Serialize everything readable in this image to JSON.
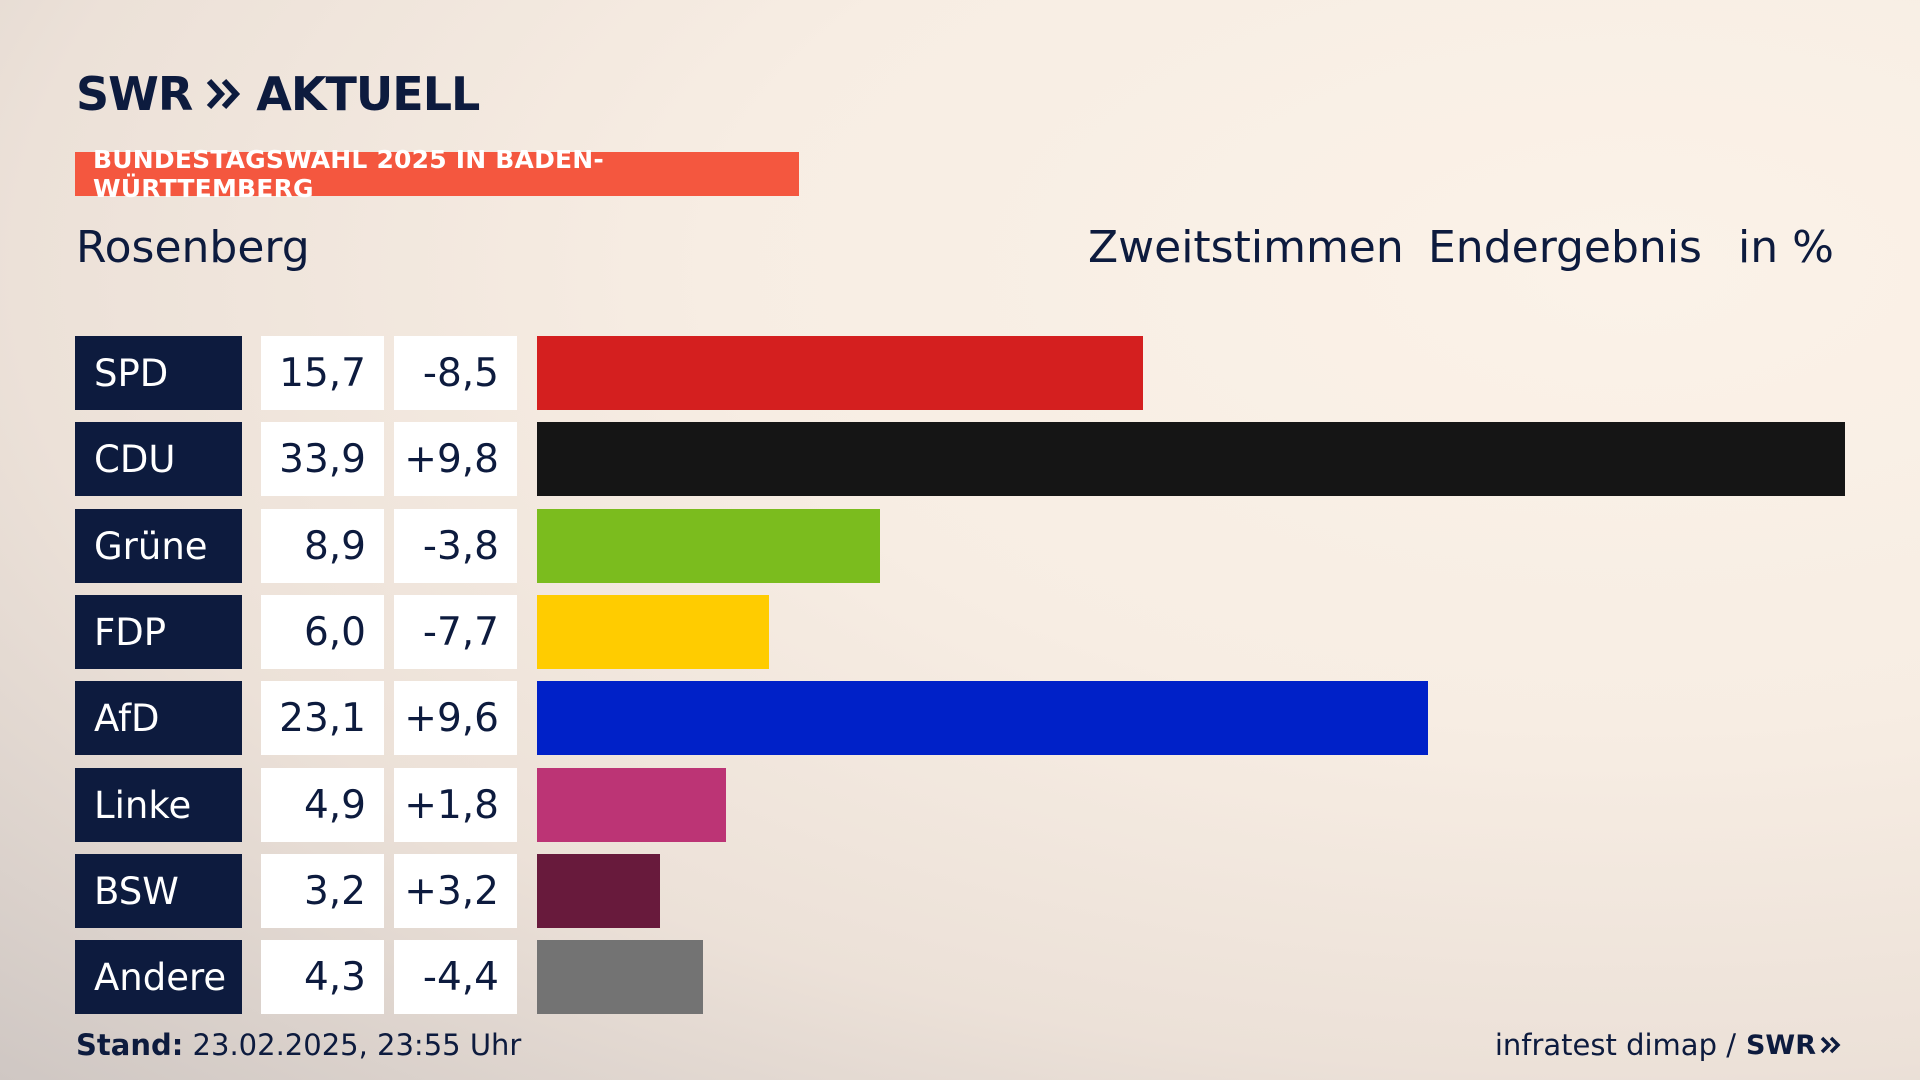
{
  "brand": {
    "logo_left": "SWR",
    "logo_right": "AKTUELL"
  },
  "banner": "BUNDESTAGSWAHL 2025 IN BADEN-WÜRTTEMBERG",
  "region": "Rosenberg",
  "header": {
    "vote_type": "Zweitstimmen",
    "result_type": "Endergebnis",
    "unit": "in %"
  },
  "colors": {
    "navy": "#0d1b3e",
    "banner": "#f4573f",
    "SPD": "#d41f1f",
    "CDU": "#151515",
    "Grüne": "#7bbc1e",
    "FDP": "#ffcc00",
    "AfD": "#0021c8",
    "Linke": "#bc3475",
    "BSW": "#681a3c",
    "Andere": "#737373"
  },
  "chart_data": {
    "type": "bar",
    "orientation": "horizontal",
    "categories": [
      "SPD",
      "CDU",
      "Grüne",
      "FDP",
      "AfD",
      "Linke",
      "BSW",
      "Andere"
    ],
    "values": [
      15.7,
      33.9,
      8.9,
      6.0,
      23.1,
      4.9,
      3.2,
      4.3
    ],
    "labels": [
      "15,7",
      "33,9",
      "8,9",
      "6,0",
      "23,1",
      "4,9",
      "3,2",
      "4,3"
    ],
    "diff_labels": [
      "-8,5",
      "+9,8",
      "-3,8",
      "-7,7",
      "+9,6",
      "+1,8",
      "+3,2",
      "-4,4"
    ],
    "diffs": [
      -8.5,
      9.8,
      -3.8,
      -7.7,
      9.6,
      1.8,
      3.2,
      -4.4
    ],
    "colors": [
      "#d41f1f",
      "#151515",
      "#7bbc1e",
      "#ffcc00",
      "#0021c8",
      "#bc3475",
      "#681a3c",
      "#737373"
    ],
    "title": "Rosenberg",
    "xlabel": "",
    "ylabel": "",
    "xlim": [
      0,
      33.9
    ]
  },
  "footer": {
    "stand_label": "Stand:",
    "stand_value": "23.02.2025, 23:55 Uhr",
    "source": "infratest dimap /",
    "source_brand": "SWR"
  }
}
